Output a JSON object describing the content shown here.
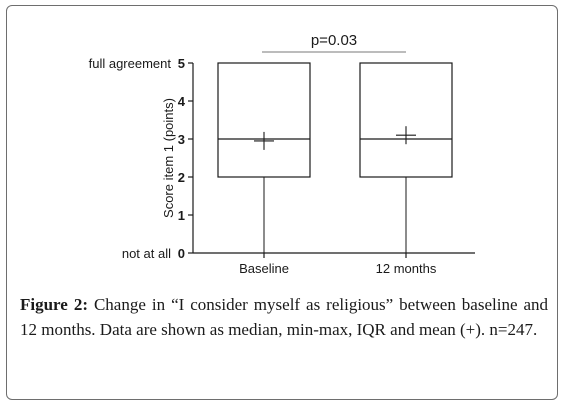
{
  "chart_data": {
    "type": "boxplot",
    "categories": [
      "Baseline",
      "12 months"
    ],
    "series": [
      {
        "category": "Baseline",
        "min": 0,
        "q1": 2,
        "median": 3,
        "q3": 5,
        "max": 5,
        "mean": 2.95
      },
      {
        "category": "12 months",
        "min": 0,
        "q1": 2,
        "median": 3,
        "q3": 5,
        "max": 5,
        "mean": 3.1
      }
    ],
    "ylabel": "Score item 1 (points)",
    "ylim": [
      0,
      5
    ],
    "yticks": [
      "0",
      "1",
      "2",
      "3",
      "4",
      "5"
    ],
    "y_top_label": "full agreement",
    "y_bottom_label": "not at all",
    "annotation": "p=0.03"
  },
  "caption": {
    "label": "Figure 2:",
    "text": "Change in “I consider myself as religious” between baseline and 12 months. Data are shown as median, min-max, IQR and mean (+). n=247."
  }
}
